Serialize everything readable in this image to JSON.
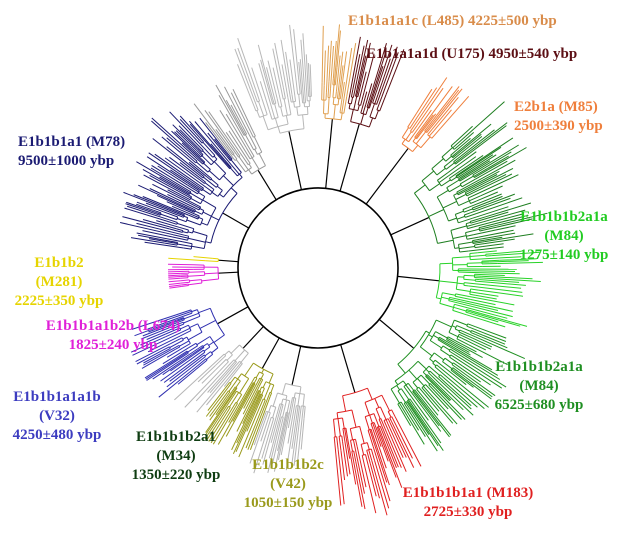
{
  "clades": [
    {
      "key": "e1b1a1a1c",
      "lines": [
        "E1b1a1a1c (L485) 4225±500 ybp"
      ],
      "color": "#d98c4a"
    },
    {
      "key": "e1b1a1a1d",
      "lines": [
        "E1b1a1a1d (U175) 4950±540 ybp"
      ],
      "color": "#5c0f14"
    },
    {
      "key": "e2b1a",
      "lines": [
        "E2b1a (M85)",
        "2500±390 ybp"
      ],
      "color": "#ef7f3c"
    },
    {
      "key": "e1b1b1a1-m78",
      "lines": [
        "E1b1b1a1 (M78)",
        "9500±1000 ybp"
      ],
      "color": "#1b1b73"
    },
    {
      "key": "e1b1b1b2a1a-m84-a",
      "lines": [
        "E1b1b1b2a1a",
        "(M84)",
        "1275±140 ybp"
      ],
      "color": "#22cc22"
    },
    {
      "key": "e1b1b2",
      "lines": [
        "E1b1b2",
        "(M281)",
        "2225±350 ybp"
      ],
      "color": "#e6d400"
    },
    {
      "key": "e1b1b1a1b2b",
      "lines": [
        "E1b1b1a1b2b (L674)",
        "1825±240 ybp"
      ],
      "color": "#e020d8"
    },
    {
      "key": "e1b1b1b2a1a-m84-b",
      "lines": [
        "E1b1b1b2a1a",
        "(M84)",
        "6525±680 ybp"
      ],
      "color": "#1f8f22"
    },
    {
      "key": "e1b1b1a1a1b",
      "lines": [
        "E1b1b1a1a1b",
        "(V32)",
        "4250±480 ybp"
      ],
      "color": "#3c3cc0"
    },
    {
      "key": "e1b1b1b2a1",
      "lines": [
        "E1b1b1b2a1",
        "(M34)",
        "1350±220 ybp"
      ],
      "color": "#0f3d12"
    },
    {
      "key": "e1b1b1b2c",
      "lines": [
        "E1b1b1b2c",
        "(V42)",
        "1050±150 ybp"
      ],
      "color": "#9a9a1c"
    },
    {
      "key": "e1b1b1b1a1",
      "lines": [
        "E1b1b1b1a1 (M183)",
        "2725±330 ybp"
      ],
      "color": "#e02020"
    }
  ]
}
